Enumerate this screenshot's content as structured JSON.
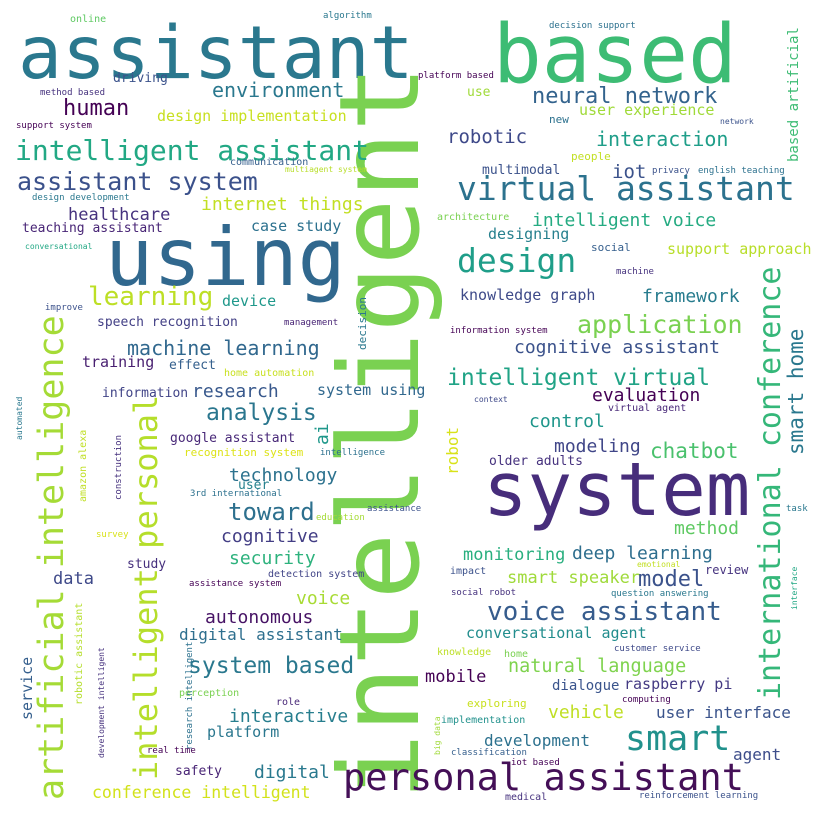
{
  "words": [
    {
      "text": "assistant",
      "color": "#2a788e"
    },
    {
      "text": "based",
      "color": "#3dbc74"
    },
    {
      "text": "intelligent",
      "color": "#7ad151"
    },
    {
      "text": "using",
      "color": "#31688e"
    },
    {
      "text": "system",
      "color": "#472d7b"
    },
    {
      "text": "personal assistant",
      "color": "#440f57"
    },
    {
      "text": "virtual assistant",
      "color": "#2c728e"
    },
    {
      "text": "intelligent assistant",
      "color": "#22a884"
    },
    {
      "text": "assistant system",
      "color": "#3b518b"
    },
    {
      "text": "artificial intelligence",
      "color": "#a5db36"
    },
    {
      "text": "intelligent personal",
      "color": "#b5de2b"
    },
    {
      "text": "international conference",
      "color": "#35b779"
    },
    {
      "text": "smart home",
      "color": "#2a788e"
    },
    {
      "text": "smart",
      "color": "#21918c"
    },
    {
      "text": "design",
      "color": "#1f9e89"
    },
    {
      "text": "learning",
      "color": "#bddf26"
    },
    {
      "text": "application",
      "color": "#7ad151"
    },
    {
      "text": "intelligent virtual",
      "color": "#20a386"
    },
    {
      "text": "voice assistant",
      "color": "#365c8d"
    },
    {
      "text": "machine learning",
      "color": "#31688e"
    },
    {
      "text": "neural network",
      "color": "#33638d"
    },
    {
      "text": "human",
      "color": "#440154"
    },
    {
      "text": "environment",
      "color": "#2a788e"
    },
    {
      "text": "interaction",
      "color": "#1f9e89"
    },
    {
      "text": "robotic",
      "color": "#3e4989"
    },
    {
      "text": "iot",
      "color": "#3b528b"
    },
    {
      "text": "internet things",
      "color": "#c2df23"
    },
    {
      "text": "intelligent voice",
      "color": "#25ab82"
    },
    {
      "text": "design implementation",
      "color": "#c8e020"
    },
    {
      "text": "user experience",
      "color": "#a0da39"
    },
    {
      "text": "healthcare",
      "color": "#46327e"
    },
    {
      "text": "teaching assistant",
      "color": "#482576"
    },
    {
      "text": "case study",
      "color": "#2c718e"
    },
    {
      "text": "designing",
      "color": "#27808e"
    },
    {
      "text": "multimodal",
      "color": "#3b528b"
    },
    {
      "text": "support approach",
      "color": "#b8de29"
    },
    {
      "text": "knowledge graph",
      "color": "#3e4a89"
    },
    {
      "text": "framework",
      "color": "#287c8e"
    },
    {
      "text": "device",
      "color": "#1f988b"
    },
    {
      "text": "speech recognition",
      "color": "#423f85"
    },
    {
      "text": "cognitive assistant",
      "color": "#3b528b"
    },
    {
      "text": "training",
      "color": "#481f70"
    },
    {
      "text": "effect",
      "color": "#35608d"
    },
    {
      "text": "information",
      "color": "#414487"
    },
    {
      "text": "research",
      "color": "#38588c"
    },
    {
      "text": "system using",
      "color": "#31688e"
    },
    {
      "text": "evaluation",
      "color": "#440154"
    },
    {
      "text": "analysis",
      "color": "#2a768e"
    },
    {
      "text": "control",
      "color": "#1f968b"
    },
    {
      "text": "modeling",
      "color": "#404688"
    },
    {
      "text": "chatbot",
      "color": "#4ac16d"
    },
    {
      "text": "older adults",
      "color": "#46327e"
    },
    {
      "text": "google assistant",
      "color": "#482878"
    },
    {
      "text": "recognition system",
      "color": "#dde318"
    },
    {
      "text": "technology",
      "color": "#2c728e"
    },
    {
      "text": "user",
      "color": "#26828e"
    },
    {
      "text": "toward",
      "color": "#2d708e"
    },
    {
      "text": "cognitive",
      "color": "#433e85"
    },
    {
      "text": "method",
      "color": "#5ec962"
    },
    {
      "text": "security",
      "color": "#2db27d"
    },
    {
      "text": "monitoring",
      "color": "#29af7f"
    },
    {
      "text": "deep learning",
      "color": "#2e6e8e"
    },
    {
      "text": "data",
      "color": "#3e4989"
    },
    {
      "text": "study",
      "color": "#46307e"
    },
    {
      "text": "smart speaker",
      "color": "#9fda3a"
    },
    {
      "text": "model",
      "color": "#3b528b"
    },
    {
      "text": "review",
      "color": "#46337f"
    },
    {
      "text": "voice",
      "color": "#a8db34"
    },
    {
      "text": "autonomous",
      "color": "#471365"
    },
    {
      "text": "digital assistant",
      "color": "#2e6f8e"
    },
    {
      "text": "conversational agent",
      "color": "#228d8d"
    },
    {
      "text": "system based",
      "color": "#2a788e"
    },
    {
      "text": "natural language",
      "color": "#7fd34e"
    },
    {
      "text": "mobile",
      "color": "#440154"
    },
    {
      "text": "dialogue",
      "color": "#3a548c"
    },
    {
      "text": "raspberry pi",
      "color": "#443a83"
    },
    {
      "text": "vehicle",
      "color": "#c0df25"
    },
    {
      "text": "user interface",
      "color": "#3a538b"
    },
    {
      "text": "interactive",
      "color": "#277e8e"
    },
    {
      "text": "platform",
      "color": "#2a778e"
    },
    {
      "text": "development",
      "color": "#2c718e"
    },
    {
      "text": "agent",
      "color": "#3d4d8a"
    },
    {
      "text": "digital",
      "color": "#29798e"
    },
    {
      "text": "safety",
      "color": "#482475"
    },
    {
      "text": "conference intelligent",
      "color": "#d2e21b"
    },
    {
      "text": "service",
      "color": "#355f8d"
    },
    {
      "text": "ai",
      "color": "#1f988b"
    },
    {
      "text": "robot",
      "color": "#d8e219"
    },
    {
      "text": "online",
      "color": "#5ec962"
    },
    {
      "text": "algorithm",
      "color": "#2a788e"
    },
    {
      "text": "decision support",
      "color": "#2c718e"
    },
    {
      "text": "based artificial",
      "color": "#3dbc74"
    },
    {
      "text": "driving",
      "color": "#3b528b"
    },
    {
      "text": "platform based",
      "color": "#440154"
    },
    {
      "text": "method based",
      "color": "#46327e"
    },
    {
      "text": "use",
      "color": "#a0da39"
    },
    {
      "text": "support system",
      "color": "#440154"
    },
    {
      "text": "new",
      "color": "#2c718e"
    },
    {
      "text": "network",
      "color": "#3b528b"
    },
    {
      "text": "people",
      "color": "#c2df23"
    },
    {
      "text": "communication",
      "color": "#355f8d"
    },
    {
      "text": "multiagent system",
      "color": "#b8de29"
    },
    {
      "text": "privacy",
      "color": "#3b528b"
    },
    {
      "text": "english teaching",
      "color": "#2c718e"
    },
    {
      "text": "design development",
      "color": "#2a788e"
    },
    {
      "text": "architecture",
      "color": "#7ad151"
    },
    {
      "text": "conversational",
      "color": "#22a884"
    },
    {
      "text": "social",
      "color": "#355f8d"
    },
    {
      "text": "machine",
      "color": "#46327e"
    },
    {
      "text": "improve",
      "color": "#3b518b"
    },
    {
      "text": "management",
      "color": "#482475"
    },
    {
      "text": "decision",
      "color": "#2a788e"
    },
    {
      "text": "information system",
      "color": "#440154"
    },
    {
      "text": "home automation",
      "color": "#c8e020"
    },
    {
      "text": "context",
      "color": "#3e4989"
    },
    {
      "text": "virtual agent",
      "color": "#482878"
    },
    {
      "text": "intelligence",
      "color": "#2c718e"
    },
    {
      "text": "automated",
      "color": "#2a788e"
    },
    {
      "text": "amazon alexa",
      "color": "#c0df25"
    },
    {
      "text": "construction",
      "color": "#46327e"
    },
    {
      "text": "3rd international",
      "color": "#2c718e"
    },
    {
      "text": "education",
      "color": "#a5db36"
    },
    {
      "text": "assistance",
      "color": "#3b528b"
    },
    {
      "text": "task",
      "color": "#2a788e"
    },
    {
      "text": "survey",
      "color": "#d8e219"
    },
    {
      "text": "emotional",
      "color": "#c2df23"
    },
    {
      "text": "detection system",
      "color": "#414487"
    },
    {
      "text": "impact",
      "color": "#3b518b"
    },
    {
      "text": "assistance system",
      "color": "#440154"
    },
    {
      "text": "social robot",
      "color": "#46327e"
    },
    {
      "text": "question answering",
      "color": "#2a788e"
    },
    {
      "text": "interface",
      "color": "#22a884"
    },
    {
      "text": "robotic assistant",
      "color": "#b5de2b"
    },
    {
      "text": "development intelligent",
      "color": "#46327e"
    },
    {
      "text": "research intelligent",
      "color": "#2c718e"
    },
    {
      "text": "knowledge",
      "color": "#bddf26"
    },
    {
      "text": "home",
      "color": "#7ad151"
    },
    {
      "text": "customer service",
      "color": "#3e4989"
    },
    {
      "text": "perception",
      "color": "#7ad151"
    },
    {
      "text": "role",
      "color": "#482878"
    },
    {
      "text": "computing",
      "color": "#440154"
    },
    {
      "text": "exploring",
      "color": "#c8e020"
    },
    {
      "text": "implementation",
      "color": "#21918c"
    },
    {
      "text": "real time",
      "color": "#440154"
    },
    {
      "text": "big data",
      "color": "#a0da39"
    },
    {
      "text": "classification",
      "color": "#355f8d"
    },
    {
      "text": "iot based",
      "color": "#440154"
    },
    {
      "text": "medical",
      "color": "#46327e"
    },
    {
      "text": "reinforcement learning",
      "color": "#3b528b"
    }
  ]
}
